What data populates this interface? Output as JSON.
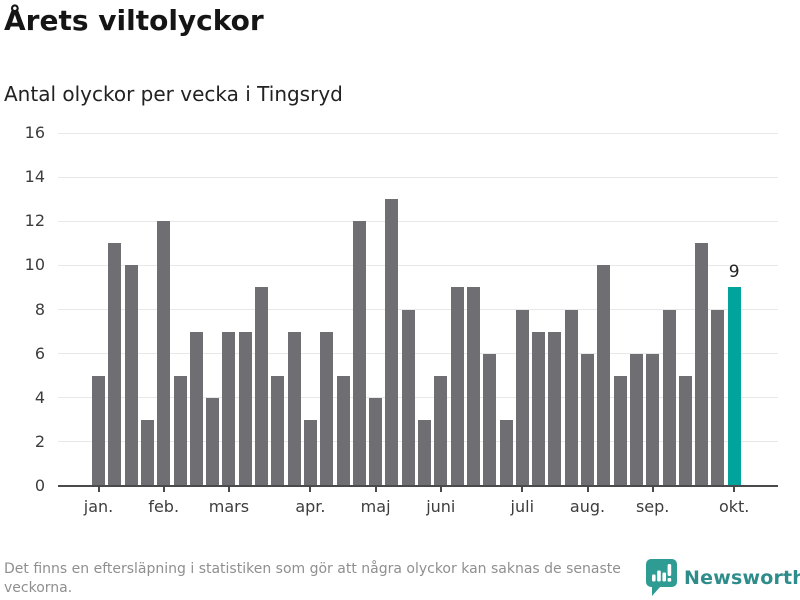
{
  "header": {
    "title": "Årets viltolyckor",
    "subtitle": "Antal olyckor per vecka i Tingsryd"
  },
  "chart_data": {
    "type": "bar",
    "title": "Årets viltolyckor",
    "subtitle": "Antal olyckor per vecka i Tingsryd",
    "values": [
      5,
      11,
      10,
      3,
      12,
      5,
      7,
      4,
      7,
      7,
      9,
      5,
      7,
      3,
      7,
      5,
      12,
      4,
      13,
      8,
      3,
      5,
      9,
      9,
      6,
      3,
      8,
      7,
      7,
      8,
      6,
      10,
      5,
      6,
      6,
      8,
      5,
      11,
      8,
      9
    ],
    "ylim": [
      0,
      16
    ],
    "yticks": [
      0,
      2,
      4,
      6,
      8,
      10,
      12,
      14,
      16
    ],
    "xticks": [
      {
        "label": "jan.",
        "index": 0
      },
      {
        "label": "feb.",
        "index": 4
      },
      {
        "label": "mars",
        "index": 8
      },
      {
        "label": "apr.",
        "index": 13
      },
      {
        "label": "maj",
        "index": 17
      },
      {
        "label": "juni",
        "index": 21
      },
      {
        "label": "juli",
        "index": 26
      },
      {
        "label": "aug.",
        "index": 30
      },
      {
        "label": "sep.",
        "index": 34
      },
      {
        "label": "okt.",
        "index": 39
      }
    ],
    "highlight": {
      "index": 39,
      "annotation": "9"
    },
    "colors": {
      "bar": "#6f6e73",
      "highlight": "#00a49c",
      "grid": "#e8e8e8",
      "axis": "#4a4a4a",
      "tick_label": "#3d3d3d",
      "annotation": "#222222"
    },
    "grid": true,
    "legend_position": "none"
  },
  "footer": {
    "note": "Det finns en eftersläpning i statistiken som gör att några olyckor kan saknas de senaste veckorna.",
    "brand": "Newsworthy",
    "brand_color": "#2e8c8b",
    "icon_color": "#2f9c94"
  }
}
